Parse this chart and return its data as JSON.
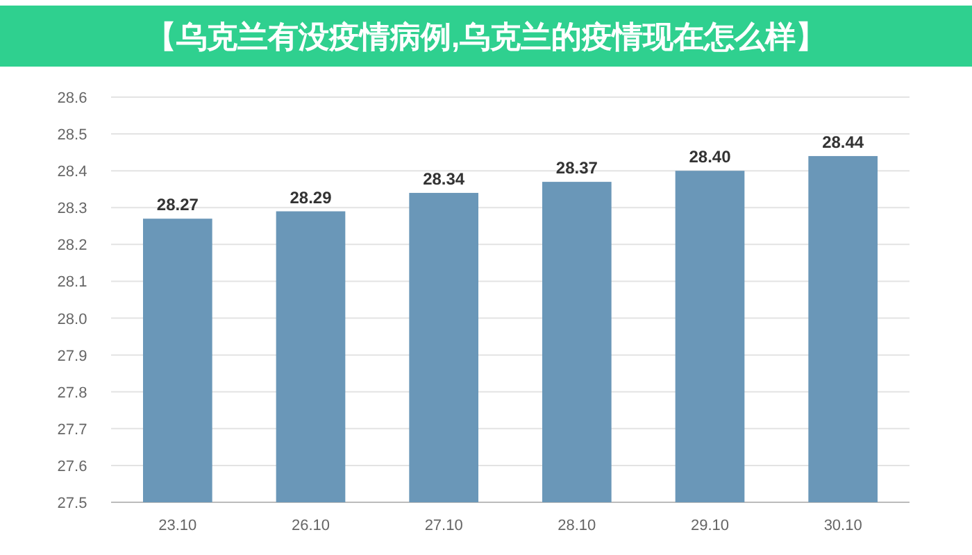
{
  "chart_data": {
    "type": "bar",
    "title": "【乌克兰有没疫情病例,乌克兰的疫情现在怎么样】",
    "categories": [
      "23.10",
      "26.10",
      "27.10",
      "28.10",
      "29.10",
      "30.10"
    ],
    "values": [
      28.27,
      28.29,
      28.34,
      28.37,
      28.4,
      28.44
    ],
    "value_labels": [
      "28.27",
      "28.29",
      "28.34",
      "28.37",
      "28.40",
      "28.44"
    ],
    "color": "#6a97b8",
    "ylim": [
      27.5,
      28.6
    ],
    "yticks": [
      {
        "value": 27.5,
        "label": "27.5"
      },
      {
        "value": 27.6,
        "label": "27.6"
      },
      {
        "value": 27.7,
        "label": "27.7"
      },
      {
        "value": 27.8,
        "label": "27.8"
      },
      {
        "value": 27.9,
        "label": "27.9"
      },
      {
        "value": 28.0,
        "label": "28.0"
      },
      {
        "value": 28.1,
        "label": "28.1"
      },
      {
        "value": 28.2,
        "label": "28.2"
      },
      {
        "value": 28.3,
        "label": "28.3"
      },
      {
        "value": 28.4,
        "label": "28.4"
      },
      {
        "value": 28.5,
        "label": "28.5"
      },
      {
        "value": 28.6,
        "label": "28.6"
      }
    ],
    "grid": "y"
  }
}
